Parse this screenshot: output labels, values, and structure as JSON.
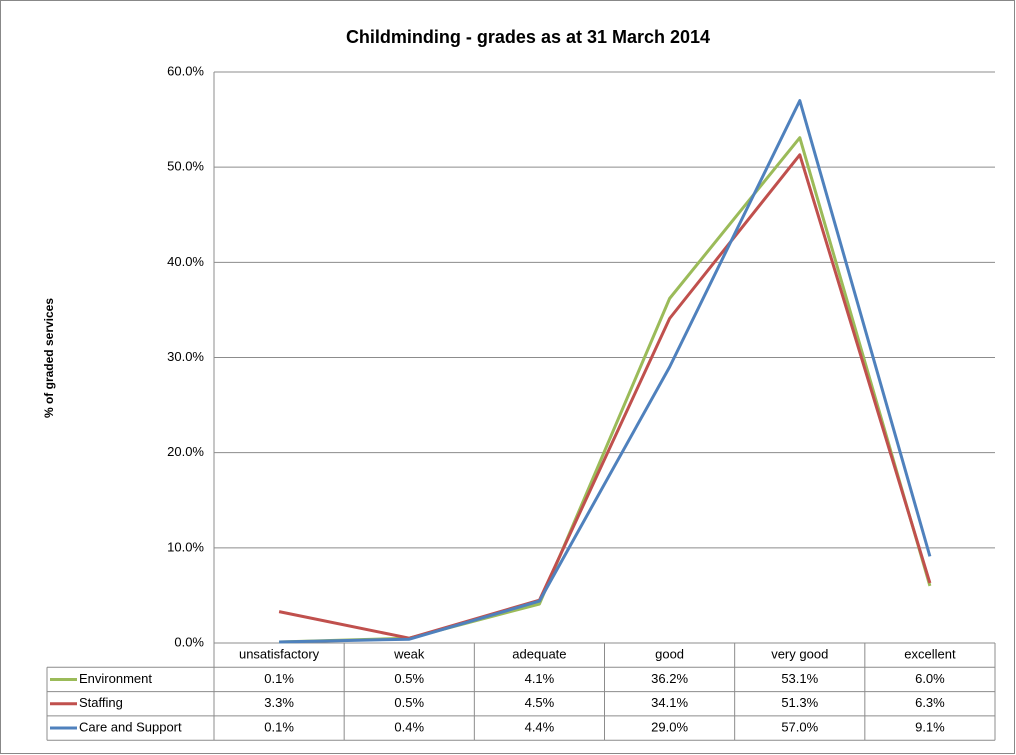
{
  "chart_data": {
    "type": "line",
    "title": "Childminding - grades as at 31 March 2014",
    "y_label": "% of graded services",
    "categories": [
      "unsatisfactory",
      "weak",
      "adequate",
      "good",
      "very good",
      "excellent"
    ],
    "series": [
      {
        "name": "Environment",
        "color": "#9bbb59",
        "values": [
          0.1,
          0.5,
          4.1,
          36.2,
          53.1,
          6.0
        ],
        "value_labels": [
          "0.1%",
          "0.5%",
          "4.1%",
          "36.2%",
          "53.1%",
          "6.0%"
        ]
      },
      {
        "name": "Staffing",
        "color": "#c0504d",
        "values": [
          3.3,
          0.5,
          4.5,
          34.1,
          51.3,
          6.3
        ],
        "value_labels": [
          "3.3%",
          "0.5%",
          "4.5%",
          "34.1%",
          "51.3%",
          "6.3%"
        ]
      },
      {
        "name": "Care and Support",
        "color": "#4f81bd",
        "values": [
          0.1,
          0.4,
          4.4,
          29.0,
          57.0,
          9.1
        ],
        "value_labels": [
          "0.1%",
          "0.4%",
          "4.4%",
          "29.0%",
          "57.0%",
          "9.1%"
        ]
      }
    ],
    "ylim": [
      0,
      60
    ],
    "yticks": [
      {
        "value": 0,
        "label": "0.0%"
      },
      {
        "value": 10,
        "label": "10.0%"
      },
      {
        "value": 20,
        "label": "20.0%"
      },
      {
        "value": 30,
        "label": "30.0%"
      },
      {
        "value": 40,
        "label": "40.0%"
      },
      {
        "value": 50,
        "label": "50.0%"
      },
      {
        "value": 60,
        "label": "60.0%"
      }
    ],
    "grid": true
  }
}
